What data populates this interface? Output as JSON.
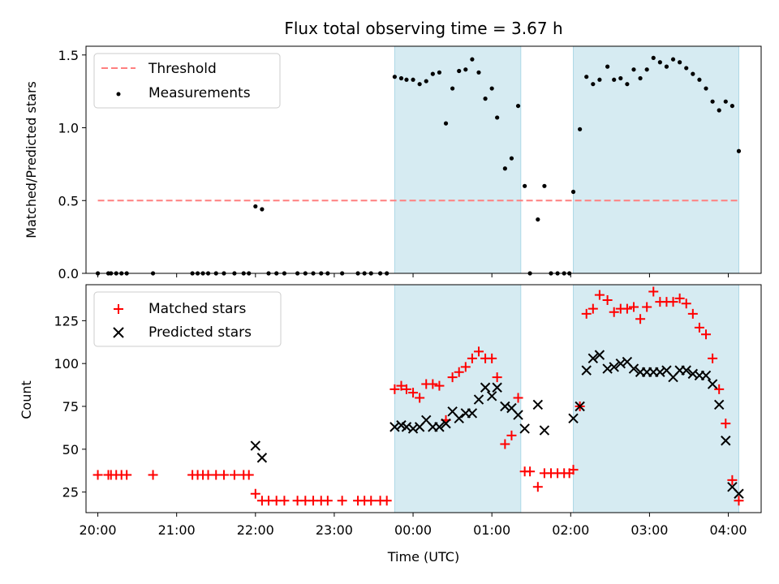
{
  "chart_data": [
    {
      "type": "scatter",
      "title": "Flux total observing time = 3.67 h",
      "xlabel": "",
      "ylabel": "Matched/Predicted stars",
      "ylim": [
        0,
        1.56
      ],
      "yticks": [
        "0.0",
        "0.5",
        "1.0",
        "1.5"
      ],
      "xlim": [
        "19:51",
        "04:25"
      ],
      "legend_position": "top-left",
      "shaded_intervals": [
        [
          "23:46",
          "01:22"
        ],
        [
          "02:02",
          "04:08"
        ]
      ],
      "shade_color": "#add8e6",
      "threshold": {
        "name": "Threshold",
        "value": 0.5,
        "x_from": "20:00",
        "x_to": "04:08",
        "color": "#ff7f7f",
        "style": "dashed"
      },
      "series": [
        {
          "name": "Measurements",
          "color": "#000000",
          "marker": "dot",
          "points": [
            [
              "20:00",
              0.0
            ],
            [
              "20:08",
              0.0
            ],
            [
              "20:10",
              0.0
            ],
            [
              "20:14",
              0.0
            ],
            [
              "20:18",
              0.0
            ],
            [
              "20:22",
              0.0
            ],
            [
              "20:42",
              0.0
            ],
            [
              "21:12",
              0.0
            ],
            [
              "21:16",
              0.0
            ],
            [
              "21:20",
              0.0
            ],
            [
              "21:24",
              0.0
            ],
            [
              "21:30",
              0.0
            ],
            [
              "21:36",
              0.0
            ],
            [
              "21:44",
              0.0
            ],
            [
              "21:51",
              0.0
            ],
            [
              "21:55",
              0.0
            ],
            [
              "22:00",
              0.46
            ],
            [
              "22:05",
              0.44
            ],
            [
              "22:10",
              0.0
            ],
            [
              "22:16",
              0.0
            ],
            [
              "22:22",
              0.0
            ],
            [
              "22:32",
              0.0
            ],
            [
              "22:38",
              0.0
            ],
            [
              "22:44",
              0.0
            ],
            [
              "22:50",
              0.0
            ],
            [
              "22:55",
              0.0
            ],
            [
              "23:06",
              0.0
            ],
            [
              "23:18",
              0.0
            ],
            [
              "23:23",
              0.0
            ],
            [
              "23:28",
              0.0
            ],
            [
              "23:35",
              0.0
            ],
            [
              "23:40",
              0.0
            ],
            [
              "23:46",
              1.35
            ],
            [
              "23:51",
              1.34
            ],
            [
              "23:55",
              1.33
            ],
            [
              "00:00",
              1.33
            ],
            [
              "00:05",
              1.3
            ],
            [
              "00:10",
              1.32
            ],
            [
              "00:15",
              1.37
            ],
            [
              "00:20",
              1.38
            ],
            [
              "00:25",
              1.03
            ],
            [
              "00:30",
              1.27
            ],
            [
              "00:35",
              1.39
            ],
            [
              "00:40",
              1.4
            ],
            [
              "00:45",
              1.47
            ],
            [
              "00:50",
              1.38
            ],
            [
              "00:55",
              1.2
            ],
            [
              "01:00",
              1.27
            ],
            [
              "01:04",
              1.07
            ],
            [
              "01:10",
              0.72
            ],
            [
              "01:15",
              0.79
            ],
            [
              "01:20",
              1.15
            ],
            [
              "01:25",
              0.6
            ],
            [
              "01:29",
              0.0
            ],
            [
              "01:35",
              0.37
            ],
            [
              "01:40",
              0.6
            ],
            [
              "01:45",
              0.0
            ],
            [
              "01:50",
              0.0
            ],
            [
              "01:55",
              0.0
            ],
            [
              "01:59",
              0.0
            ],
            [
              "02:02",
              0.56
            ],
            [
              "02:07",
              0.99
            ],
            [
              "02:12",
              1.35
            ],
            [
              "02:17",
              1.3
            ],
            [
              "02:22",
              1.33
            ],
            [
              "02:28",
              1.42
            ],
            [
              "02:33",
              1.33
            ],
            [
              "02:38",
              1.34
            ],
            [
              "02:43",
              1.3
            ],
            [
              "02:48",
              1.4
            ],
            [
              "02:53",
              1.34
            ],
            [
              "02:58",
              1.4
            ],
            [
              "03:03",
              1.48
            ],
            [
              "03:08",
              1.45
            ],
            [
              "03:13",
              1.42
            ],
            [
              "03:18",
              1.47
            ],
            [
              "03:23",
              1.45
            ],
            [
              "03:28",
              1.41
            ],
            [
              "03:33",
              1.37
            ],
            [
              "03:38",
              1.33
            ],
            [
              "03:43",
              1.27
            ],
            [
              "03:48",
              1.18
            ],
            [
              "03:53",
              1.12
            ],
            [
              "03:58",
              1.18
            ],
            [
              "04:03",
              1.15
            ],
            [
              "04:08",
              0.84
            ]
          ]
        }
      ]
    },
    {
      "type": "scatter",
      "title": "",
      "xlabel": "Time (UTC)",
      "ylabel": "Count",
      "ylim": [
        13,
        146
      ],
      "yticks": [
        "25",
        "50",
        "75",
        "100",
        "125"
      ],
      "xlim": [
        "19:51",
        "04:25"
      ],
      "xticks": [
        "20:00",
        "21:00",
        "22:00",
        "23:00",
        "00:00",
        "01:00",
        "02:00",
        "03:00",
        "04:00"
      ],
      "legend_position": "top-left",
      "shaded_intervals": [
        [
          "23:46",
          "01:22"
        ],
        [
          "02:02",
          "04:08"
        ]
      ],
      "shade_color": "#add8e6",
      "series": [
        {
          "name": "Matched stars",
          "color": "#ff0000",
          "marker": "plus",
          "points": [
            [
              "20:00",
              35
            ],
            [
              "20:08",
              35
            ],
            [
              "20:10",
              35
            ],
            [
              "20:14",
              35
            ],
            [
              "20:18",
              35
            ],
            [
              "20:22",
              35
            ],
            [
              "20:42",
              35
            ],
            [
              "21:12",
              35
            ],
            [
              "21:16",
              35
            ],
            [
              "21:20",
              35
            ],
            [
              "21:24",
              35
            ],
            [
              "21:30",
              35
            ],
            [
              "21:36",
              35
            ],
            [
              "21:44",
              35
            ],
            [
              "21:51",
              35
            ],
            [
              "21:55",
              35
            ],
            [
              "22:00",
              24
            ],
            [
              "22:05",
              20
            ],
            [
              "22:10",
              20
            ],
            [
              "22:16",
              20
            ],
            [
              "22:22",
              20
            ],
            [
              "22:32",
              20
            ],
            [
              "22:38",
              20
            ],
            [
              "22:44",
              20
            ],
            [
              "22:50",
              20
            ],
            [
              "22:55",
              20
            ],
            [
              "23:06",
              20
            ],
            [
              "23:18",
              20
            ],
            [
              "23:23",
              20
            ],
            [
              "23:28",
              20
            ],
            [
              "23:35",
              20
            ],
            [
              "23:40",
              20
            ],
            [
              "23:46",
              85
            ],
            [
              "23:51",
              87
            ],
            [
              "23:55",
              85
            ],
            [
              "00:00",
              83
            ],
            [
              "00:05",
              80
            ],
            [
              "00:10",
              88
            ],
            [
              "00:15",
              88
            ],
            [
              "00:20",
              87
            ],
            [
              "00:25",
              67
            ],
            [
              "00:30",
              92
            ],
            [
              "00:35",
              95
            ],
            [
              "00:40",
              98
            ],
            [
              "00:45",
              103
            ],
            [
              "00:50",
              107
            ],
            [
              "00:55",
              103
            ],
            [
              "01:00",
              103
            ],
            [
              "01:04",
              92
            ],
            [
              "01:10",
              53
            ],
            [
              "01:15",
              58
            ],
            [
              "01:20",
              80
            ],
            [
              "01:25",
              37
            ],
            [
              "01:29",
              37
            ],
            [
              "01:35",
              28
            ],
            [
              "01:40",
              36
            ],
            [
              "01:45",
              36
            ],
            [
              "01:50",
              36
            ],
            [
              "01:55",
              36
            ],
            [
              "01:59",
              36
            ],
            [
              "02:02",
              38
            ],
            [
              "02:07",
              75
            ],
            [
              "02:12",
              129
            ],
            [
              "02:17",
              132
            ],
            [
              "02:22",
              140
            ],
            [
              "02:28",
              137
            ],
            [
              "02:33",
              130
            ],
            [
              "02:38",
              132
            ],
            [
              "02:43",
              132
            ],
            [
              "02:48",
              133
            ],
            [
              "02:53",
              126
            ],
            [
              "02:58",
              133
            ],
            [
              "03:03",
              142
            ],
            [
              "03:08",
              136
            ],
            [
              "03:13",
              136
            ],
            [
              "03:18",
              136
            ],
            [
              "03:23",
              138
            ],
            [
              "03:28",
              135
            ],
            [
              "03:33",
              129
            ],
            [
              "03:38",
              121
            ],
            [
              "03:43",
              117
            ],
            [
              "03:48",
              103
            ],
            [
              "03:53",
              85
            ],
            [
              "03:58",
              65
            ],
            [
              "04:03",
              32
            ],
            [
              "04:08",
              20
            ]
          ]
        },
        {
          "name": "Predicted stars",
          "color": "#000000",
          "marker": "x",
          "points": [
            [
              "22:00",
              52
            ],
            [
              "22:05",
              45
            ],
            [
              "23:46",
              63
            ],
            [
              "23:51",
              64
            ],
            [
              "23:55",
              63
            ],
            [
              "00:00",
              62
            ],
            [
              "00:05",
              63
            ],
            [
              "00:10",
              67
            ],
            [
              "00:15",
              63
            ],
            [
              "00:20",
              63
            ],
            [
              "00:25",
              65
            ],
            [
              "00:30",
              72
            ],
            [
              "00:35",
              68
            ],
            [
              "00:40",
              71
            ],
            [
              "00:45",
              71
            ],
            [
              "00:50",
              79
            ],
            [
              "00:55",
              86
            ],
            [
              "01:00",
              81
            ],
            [
              "01:04",
              86
            ],
            [
              "01:10",
              75
            ],
            [
              "01:15",
              74
            ],
            [
              "01:20",
              70
            ],
            [
              "01:25",
              62
            ],
            [
              "01:35",
              76
            ],
            [
              "01:40",
              61
            ],
            [
              "02:02",
              68
            ],
            [
              "02:07",
              75
            ],
            [
              "02:12",
              96
            ],
            [
              "02:17",
              103
            ],
            [
              "02:22",
              105
            ],
            [
              "02:28",
              97
            ],
            [
              "02:33",
              98
            ],
            [
              "02:38",
              100
            ],
            [
              "02:43",
              101
            ],
            [
              "02:48",
              97
            ],
            [
              "02:53",
              95
            ],
            [
              "02:58",
              95
            ],
            [
              "03:03",
              95
            ],
            [
              "03:08",
              95
            ],
            [
              "03:13",
              96
            ],
            [
              "03:18",
              92
            ],
            [
              "03:23",
              96
            ],
            [
              "03:28",
              96
            ],
            [
              "03:33",
              94
            ],
            [
              "03:38",
              93
            ],
            [
              "03:43",
              93
            ],
            [
              "03:48",
              88
            ],
            [
              "03:53",
              76
            ],
            [
              "03:58",
              55
            ],
            [
              "04:03",
              28
            ],
            [
              "04:08",
              24
            ]
          ]
        }
      ]
    }
  ]
}
